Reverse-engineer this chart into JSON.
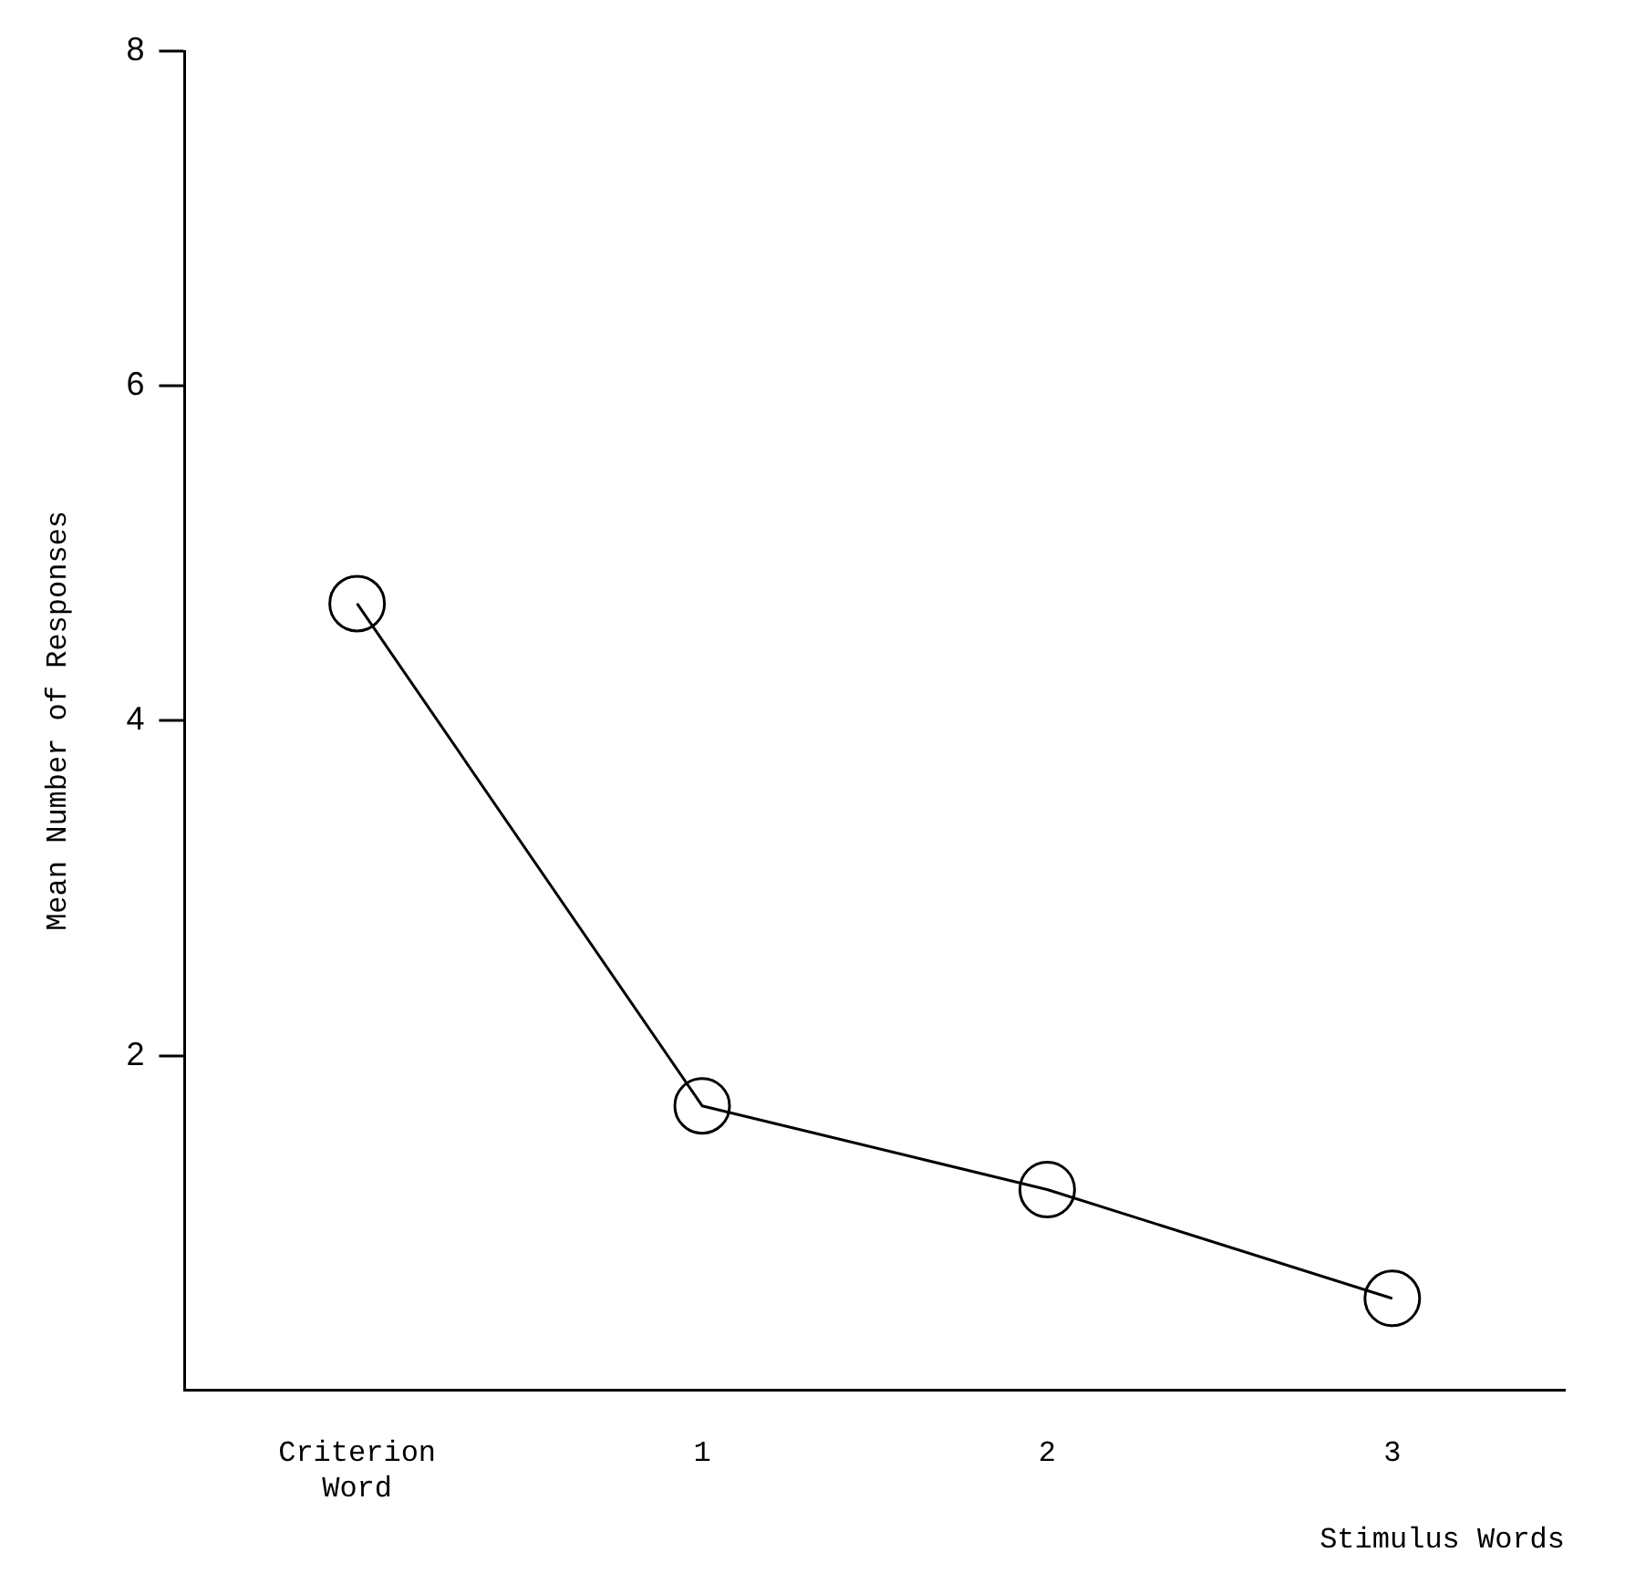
{
  "chart_data": {
    "type": "line",
    "xlabel": "Stimulus Words",
    "ylabel": "Mean Number of Responses",
    "categories": [
      "Criterion Word",
      "1",
      "2",
      "3"
    ],
    "series": [
      {
        "color": "#000000",
        "values": [
          4.7,
          1.7,
          1.2,
          0.55
        ]
      }
    ],
    "ylim": [
      0,
      8
    ],
    "yticks": [
      2,
      4,
      6,
      8
    ],
    "grid": false,
    "legend": false,
    "marker": "circle",
    "line_style": "solid"
  }
}
